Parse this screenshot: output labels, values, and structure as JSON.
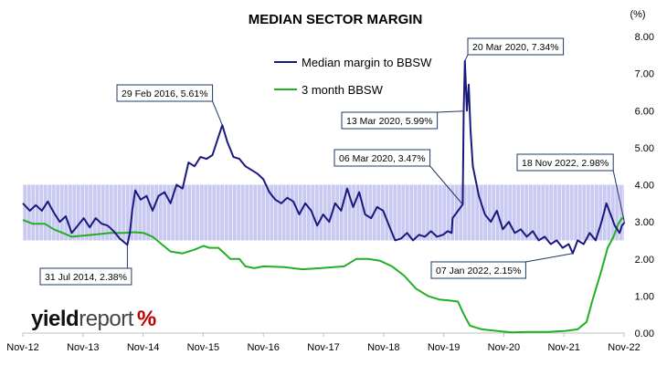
{
  "chart_data": {
    "type": "line",
    "title": "MEDIAN SECTOR MARGIN",
    "unit_label": "(%)",
    "x_ticks": [
      "Nov-12",
      "Nov-13",
      "Nov-14",
      "Nov-15",
      "Nov-16",
      "Nov-17",
      "Nov-18",
      "Nov-19",
      "Nov-20",
      "Nov-21",
      "Nov-22"
    ],
    "x_range": [
      2012.833,
      2022.875
    ],
    "ylim": [
      0,
      8
    ],
    "y_ticks": [
      "0.00",
      "1.00",
      "2.00",
      "3.00",
      "4.00",
      "5.00",
      "6.00",
      "7.00",
      "8.00"
    ],
    "y_axis_side": "right",
    "legend_position": "top-center",
    "shaded_band": {
      "from": 2.5,
      "to": 4.0,
      "color": "#c9c9f2"
    },
    "series": [
      {
        "name": "Median margin to BBSW",
        "color": "#1a1a7e",
        "points": [
          [
            2012.833,
            3.5
          ],
          [
            2012.95,
            3.3
          ],
          [
            2013.05,
            3.45
          ],
          [
            2013.15,
            3.3
          ],
          [
            2013.25,
            3.55
          ],
          [
            2013.35,
            3.25
          ],
          [
            2013.45,
            3.0
          ],
          [
            2013.55,
            3.15
          ],
          [
            2013.65,
            2.7
          ],
          [
            2013.75,
            2.9
          ],
          [
            2013.85,
            3.1
          ],
          [
            2013.95,
            2.85
          ],
          [
            2014.05,
            3.1
          ],
          [
            2014.15,
            2.95
          ],
          [
            2014.25,
            2.9
          ],
          [
            2014.35,
            2.75
          ],
          [
            2014.45,
            2.55
          ],
          [
            2014.579,
            2.38
          ],
          [
            2014.62,
            2.7
          ],
          [
            2014.66,
            3.3
          ],
          [
            2014.71,
            3.85
          ],
          [
            2014.8,
            3.6
          ],
          [
            2014.9,
            3.7
          ],
          [
            2015.0,
            3.3
          ],
          [
            2015.1,
            3.7
          ],
          [
            2015.2,
            3.8
          ],
          [
            2015.3,
            3.5
          ],
          [
            2015.4,
            4.0
          ],
          [
            2015.5,
            3.9
          ],
          [
            2015.6,
            4.6
          ],
          [
            2015.7,
            4.5
          ],
          [
            2015.8,
            4.75
          ],
          [
            2015.9,
            4.7
          ],
          [
            2016.0,
            4.8
          ],
          [
            2016.08,
            5.2
          ],
          [
            2016.164,
            5.61
          ],
          [
            2016.25,
            5.15
          ],
          [
            2016.35,
            4.75
          ],
          [
            2016.45,
            4.7
          ],
          [
            2016.55,
            4.5
          ],
          [
            2016.65,
            4.4
          ],
          [
            2016.75,
            4.3
          ],
          [
            2016.85,
            4.15
          ],
          [
            2016.95,
            3.8
          ],
          [
            2017.05,
            3.6
          ],
          [
            2017.15,
            3.5
          ],
          [
            2017.25,
            3.65
          ],
          [
            2017.35,
            3.55
          ],
          [
            2017.45,
            3.2
          ],
          [
            2017.55,
            3.5
          ],
          [
            2017.65,
            3.3
          ],
          [
            2017.75,
            2.9
          ],
          [
            2017.85,
            3.2
          ],
          [
            2017.95,
            3.0
          ],
          [
            2018.05,
            3.5
          ],
          [
            2018.15,
            3.3
          ],
          [
            2018.25,
            3.9
          ],
          [
            2018.35,
            3.4
          ],
          [
            2018.45,
            3.8
          ],
          [
            2018.55,
            3.2
          ],
          [
            2018.65,
            3.1
          ],
          [
            2018.75,
            3.4
          ],
          [
            2018.85,
            3.3
          ],
          [
            2018.95,
            2.9
          ],
          [
            2019.05,
            2.5
          ],
          [
            2019.15,
            2.55
          ],
          [
            2019.25,
            2.7
          ],
          [
            2019.35,
            2.5
          ],
          [
            2019.45,
            2.65
          ],
          [
            2019.55,
            2.6
          ],
          [
            2019.65,
            2.75
          ],
          [
            2019.75,
            2.6
          ],
          [
            2019.85,
            2.65
          ],
          [
            2019.93,
            2.75
          ],
          [
            2019.995,
            2.7
          ],
          [
            2020.01,
            3.1
          ],
          [
            2020.18,
            3.47
          ],
          [
            2020.197,
            5.99
          ],
          [
            2020.217,
            7.34
          ],
          [
            2020.23,
            6.8
          ],
          [
            2020.25,
            6.0
          ],
          [
            2020.28,
            6.7
          ],
          [
            2020.31,
            5.5
          ],
          [
            2020.35,
            4.5
          ],
          [
            2020.45,
            3.7
          ],
          [
            2020.55,
            3.2
          ],
          [
            2020.65,
            3.0
          ],
          [
            2020.75,
            3.3
          ],
          [
            2020.85,
            2.8
          ],
          [
            2020.95,
            3.0
          ],
          [
            2021.05,
            2.7
          ],
          [
            2021.15,
            2.8
          ],
          [
            2021.25,
            2.6
          ],
          [
            2021.35,
            2.75
          ],
          [
            2021.45,
            2.5
          ],
          [
            2021.55,
            2.6
          ],
          [
            2021.65,
            2.4
          ],
          [
            2021.75,
            2.5
          ],
          [
            2021.85,
            2.3
          ],
          [
            2021.95,
            2.4
          ],
          [
            2022.019,
            2.15
          ],
          [
            2022.1,
            2.5
          ],
          [
            2022.2,
            2.4
          ],
          [
            2022.3,
            2.7
          ],
          [
            2022.4,
            2.5
          ],
          [
            2022.5,
            3.0
          ],
          [
            2022.58,
            3.5
          ],
          [
            2022.65,
            3.2
          ],
          [
            2022.72,
            2.9
          ],
          [
            2022.8,
            2.7
          ],
          [
            2022.84,
            2.9
          ],
          [
            2022.882,
            2.98
          ]
        ]
      },
      {
        "name": "3 month BBSW",
        "color": "#22b022",
        "points": [
          [
            2012.833,
            3.05
          ],
          [
            2013.0,
            2.95
          ],
          [
            2013.2,
            2.95
          ],
          [
            2013.35,
            2.8
          ],
          [
            2013.5,
            2.7
          ],
          [
            2013.65,
            2.6
          ],
          [
            2014.0,
            2.65
          ],
          [
            2014.3,
            2.7
          ],
          [
            2014.5,
            2.7
          ],
          [
            2014.7,
            2.72
          ],
          [
            2014.85,
            2.7
          ],
          [
            2015.0,
            2.6
          ],
          [
            2015.15,
            2.4
          ],
          [
            2015.3,
            2.2
          ],
          [
            2015.5,
            2.15
          ],
          [
            2015.7,
            2.25
          ],
          [
            2015.85,
            2.35
          ],
          [
            2015.95,
            2.3
          ],
          [
            2016.1,
            2.3
          ],
          [
            2016.3,
            2.0
          ],
          [
            2016.45,
            2.0
          ],
          [
            2016.55,
            1.8
          ],
          [
            2016.7,
            1.75
          ],
          [
            2016.85,
            1.8
          ],
          [
            2017.2,
            1.78
          ],
          [
            2017.5,
            1.72
          ],
          [
            2017.8,
            1.75
          ],
          [
            2018.2,
            1.8
          ],
          [
            2018.4,
            2.0
          ],
          [
            2018.6,
            2.0
          ],
          [
            2018.8,
            1.95
          ],
          [
            2019.0,
            1.8
          ],
          [
            2019.2,
            1.55
          ],
          [
            2019.4,
            1.2
          ],
          [
            2019.6,
            1.0
          ],
          [
            2019.8,
            0.9
          ],
          [
            2019.95,
            0.88
          ],
          [
            2020.1,
            0.85
          ],
          [
            2020.2,
            0.5
          ],
          [
            2020.3,
            0.2
          ],
          [
            2020.5,
            0.1
          ],
          [
            2020.8,
            0.05
          ],
          [
            2021.0,
            0.02
          ],
          [
            2021.3,
            0.03
          ],
          [
            2021.6,
            0.03
          ],
          [
            2021.9,
            0.06
          ],
          [
            2022.1,
            0.1
          ],
          [
            2022.25,
            0.3
          ],
          [
            2022.35,
            0.9
          ],
          [
            2022.5,
            1.7
          ],
          [
            2022.6,
            2.3
          ],
          [
            2022.7,
            2.6
          ],
          [
            2022.78,
            2.95
          ],
          [
            2022.84,
            3.1
          ],
          [
            2022.875,
            3.08
          ]
        ]
      }
    ],
    "annotations": [
      {
        "label": "29 Feb 2016, 5.61%",
        "x": 2016.164,
        "y": 5.61
      },
      {
        "label": "20 Mar 2020, 7.34%",
        "x": 2020.217,
        "y": 7.34
      },
      {
        "label": "13 Mar 2020, 5.99%",
        "x": 2020.197,
        "y": 5.99
      },
      {
        "label": "06 Mar 2020, 3.47%",
        "x": 2020.18,
        "y": 3.47
      },
      {
        "label": "18 Nov 2022, 2.98%",
        "x": 2022.882,
        "y": 2.98
      },
      {
        "label": "31 Jul 2014, 2.38%",
        "x": 2014.579,
        "y": 2.38
      },
      {
        "label": "07 Jan 2022, 2.15%",
        "x": 2022.019,
        "y": 2.15
      }
    ]
  },
  "logo": {
    "word1": "yield",
    "word2": "report",
    "symbol": "%"
  }
}
